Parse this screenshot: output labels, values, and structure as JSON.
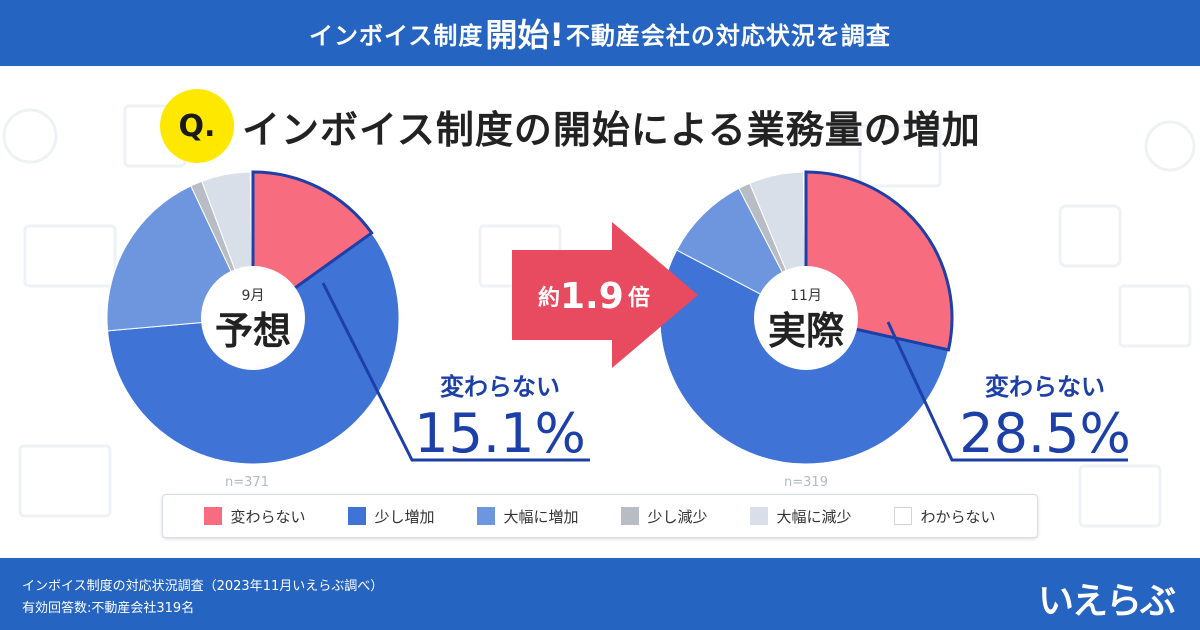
{
  "header": {
    "part1": "インボイス制度",
    "part2": "開始!",
    "part3": "不動産会社の対応状況を調査"
  },
  "question": {
    "badge": "Q.",
    "text": "インボイス制度の開始による業務量の増加"
  },
  "colors": {
    "header_bg": "#2564c1",
    "no_change": "#f76c7f",
    "slight_increase": "#3f73d6",
    "large_increase": "#6d96df",
    "slight_decrease": "#b8bcc4",
    "large_decrease": "#d9dfe8",
    "unknown": "#ffffff",
    "arrow": "#e84a5f",
    "highlight_line": "#1d3fa8"
  },
  "chart_data": [
    {
      "type": "pie",
      "title": "予想",
      "month": "9月",
      "n_label": "n=371",
      "categories": [
        "変わらない",
        "少し増加",
        "大幅に増加",
        "少し減少",
        "大幅に減少",
        "わからない"
      ],
      "values": [
        15.1,
        58.5,
        19.4,
        1.3,
        5.4,
        0.3
      ],
      "highlight_label": "変わらない",
      "highlight_value": "15.1%"
    },
    {
      "type": "pie",
      "title": "実際",
      "month": "11月",
      "n_label": "n=319",
      "categories": [
        "変わらない",
        "少し増加",
        "大幅に増加",
        "少し減少",
        "大幅に減少",
        "わからない"
      ],
      "values": [
        28.5,
        54.2,
        9.7,
        1.3,
        6.0,
        0.3
      ],
      "highlight_label": "変わらない",
      "highlight_value": "28.5%"
    }
  ],
  "arrow": {
    "prefix": "約",
    "value": "1.9",
    "suffix": "倍"
  },
  "legend": [
    {
      "label": "変わらない",
      "color": "#f76c7f"
    },
    {
      "label": "少し増加",
      "color": "#3f73d6"
    },
    {
      "label": "大幅に増加",
      "color": "#6d96df"
    },
    {
      "label": "少し減少",
      "color": "#b8bcc4"
    },
    {
      "label": "大幅に減少",
      "color": "#d9dfe8"
    },
    {
      "label": "わからない",
      "color": "#ffffff"
    }
  ],
  "footer": {
    "line1": "インボイス制度の対応状況調査（2023年11月いえらぶ調べ）",
    "line2": "有効回答数:不動産会社319名",
    "logo": "いえらぶ"
  }
}
